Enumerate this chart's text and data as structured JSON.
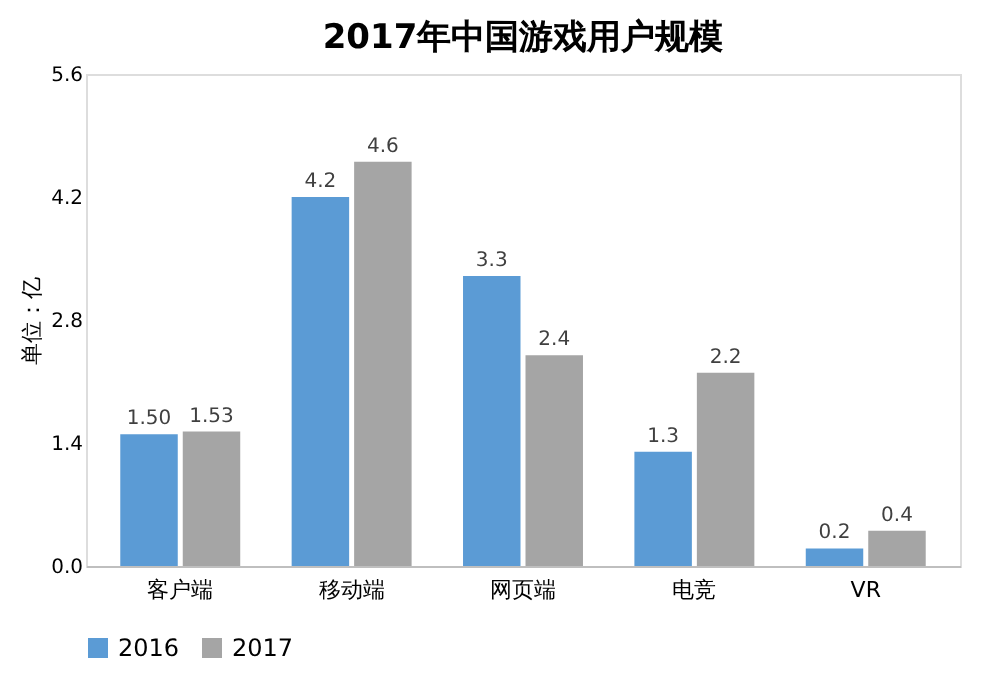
{
  "chart_data": {
    "type": "bar",
    "title": "2017年中国游戏用户规模",
    "ylabel": "单位：亿",
    "categories": [
      "客户端",
      "移动端",
      "网页端",
      "电竞",
      "VR"
    ],
    "series": [
      {
        "name": "2016",
        "color": "#5b9bd5",
        "values": [
          1.5,
          4.2,
          3.3,
          1.3,
          0.2
        ],
        "value_labels": [
          "1.50",
          "4.2",
          "3.3",
          "1.3",
          "0.2"
        ]
      },
      {
        "name": "2017",
        "color": "#a5a5a5",
        "values": [
          1.53,
          4.6,
          2.4,
          2.2,
          0.4
        ],
        "value_labels": [
          "1.53",
          "4.6",
          "2.4",
          "2.2",
          "0.4"
        ]
      }
    ],
    "ylim": [
      0,
      5.6
    ],
    "yticks": [
      {
        "value": 0,
        "label": "0.0"
      },
      1.4,
      2.8,
      4.2,
      5.6
    ],
    "grid": false,
    "legend": "bottom"
  }
}
